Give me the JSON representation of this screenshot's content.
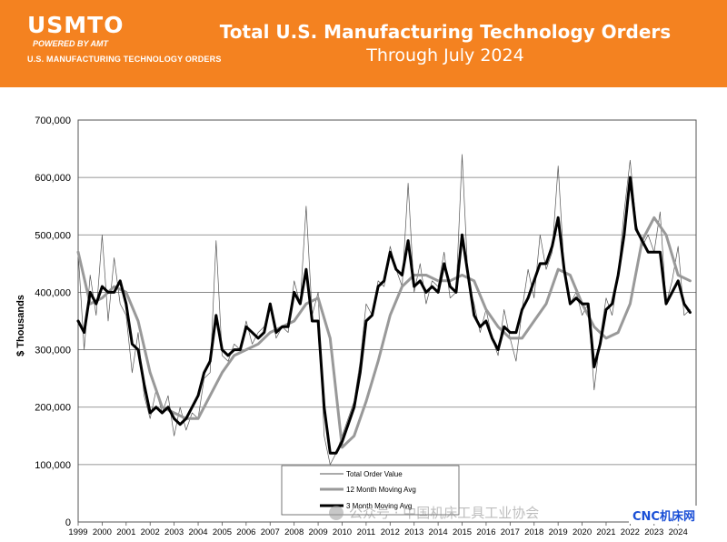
{
  "banner": {
    "logo_text": "USMTO",
    "powered_by": "POWERED BY AMT",
    "org_name": "U.S. MANUFACTURING TECHNOLOGY ORDERS",
    "title": "Total U.S. Manufacturing Technology Orders",
    "subtitle": "Through July 2024",
    "color": "#f48220"
  },
  "watermark": {
    "text": "公众号 · 中国机床工具工业协会",
    "badge": "CNC机床网"
  },
  "chart_data": {
    "type": "line",
    "title": "Total U.S. Manufacturing Technology Orders",
    "subtitle": "Through July 2024",
    "ylabel": "$ Thousands",
    "xlabel": "",
    "ylim": [
      0,
      700000
    ],
    "xlim": [
      1999,
      2024.75
    ],
    "yticks": [
      "0",
      "100,000",
      "200,000",
      "300,000",
      "400,000",
      "500,000",
      "600,000",
      "700,000"
    ],
    "xticks": [
      "1999",
      "2000",
      "2001",
      "2002",
      "2003",
      "2004",
      "2005",
      "2006",
      "2007",
      "2008",
      "2009",
      "2010",
      "2011",
      "2012",
      "2013",
      "2014",
      "2015",
      "2016",
      "2017",
      "2018",
      "2019",
      "2020",
      "2021",
      "2022",
      "2023",
      "2024"
    ],
    "grid": "horizontal",
    "legend_placement": "bottom-center",
    "series": [
      {
        "name": "Total Order Value",
        "color": "#555555",
        "x": [
          1999.0,
          1999.25,
          1999.5,
          1999.75,
          2000.0,
          2000.25,
          2000.5,
          2000.75,
          2001.0,
          2001.25,
          2001.5,
          2001.75,
          2002.0,
          2002.25,
          2002.5,
          2002.75,
          2003.0,
          2003.25,
          2003.5,
          2003.75,
          2004.0,
          2004.25,
          2004.5,
          2004.75,
          2005.0,
          2005.25,
          2005.5,
          2005.75,
          2006.0,
          2006.25,
          2006.5,
          2006.75,
          2007.0,
          2007.25,
          2007.5,
          2007.75,
          2008.0,
          2008.25,
          2008.5,
          2008.75,
          2009.0,
          2009.25,
          2009.5,
          2009.75,
          2010.0,
          2010.25,
          2010.5,
          2010.75,
          2011.0,
          2011.25,
          2011.5,
          2011.75,
          2012.0,
          2012.25,
          2012.5,
          2012.75,
          2013.0,
          2013.25,
          2013.5,
          2013.75,
          2014.0,
          2014.25,
          2014.5,
          2014.75,
          2015.0,
          2015.25,
          2015.5,
          2015.75,
          2016.0,
          2016.25,
          2016.5,
          2016.75,
          2017.0,
          2017.25,
          2017.5,
          2017.75,
          2018.0,
          2018.25,
          2018.5,
          2018.75,
          2019.0,
          2019.25,
          2019.5,
          2019.75,
          2020.0,
          2020.25,
          2020.5,
          2020.75,
          2021.0,
          2021.25,
          2021.5,
          2021.75,
          2022.0,
          2022.25,
          2022.5,
          2022.75,
          2023.0,
          2023.25,
          2023.5,
          2023.75,
          2024.0,
          2024.25,
          2024.5
        ],
        "values": [
          470000,
          300000,
          430000,
          360000,
          500000,
          350000,
          460000,
          380000,
          360000,
          260000,
          330000,
          220000,
          180000,
          230000,
          190000,
          220000,
          150000,
          200000,
          160000,
          190000,
          180000,
          250000,
          260000,
          490000,
          290000,
          280000,
          310000,
          300000,
          350000,
          310000,
          330000,
          340000,
          380000,
          320000,
          340000,
          330000,
          420000,
          380000,
          550000,
          360000,
          400000,
          150000,
          100000,
          120000,
          150000,
          180000,
          210000,
          280000,
          380000,
          360000,
          420000,
          410000,
          480000,
          440000,
          410000,
          590000,
          400000,
          450000,
          380000,
          420000,
          410000,
          470000,
          390000,
          400000,
          640000,
          420000,
          380000,
          330000,
          370000,
          320000,
          290000,
          370000,
          320000,
          280000,
          370000,
          440000,
          390000,
          500000,
          440000,
          470000,
          620000,
          440000,
          380000,
          400000,
          360000,
          380000,
          230000,
          320000,
          390000,
          360000,
          430000,
          540000,
          630000,
          520000,
          480000,
          500000,
          470000,
          540000,
          380000,
          420000,
          480000,
          360000,
          370000
        ]
      },
      {
        "name": "12 Month Moving Avg",
        "color": "#999999",
        "x": [
          1999.0,
          1999.5,
          2000.0,
          2000.5,
          2001.0,
          2001.5,
          2002.0,
          2002.5,
          2003.0,
          2003.5,
          2004.0,
          2004.5,
          2005.0,
          2005.5,
          2006.0,
          2006.5,
          2007.0,
          2007.5,
          2008.0,
          2008.5,
          2009.0,
          2009.5,
          2010.0,
          2010.5,
          2011.0,
          2011.5,
          2012.0,
          2012.5,
          2013.0,
          2013.5,
          2014.0,
          2014.5,
          2015.0,
          2015.5,
          2016.0,
          2016.5,
          2017.0,
          2017.5,
          2018.0,
          2018.5,
          2019.0,
          2019.5,
          2020.0,
          2020.5,
          2021.0,
          2021.5,
          2022.0,
          2022.5,
          2023.0,
          2023.5,
          2024.0,
          2024.5
        ],
        "values": [
          470000,
          380000,
          390000,
          410000,
          400000,
          350000,
          260000,
          200000,
          190000,
          180000,
          180000,
          220000,
          260000,
          290000,
          300000,
          310000,
          330000,
          340000,
          350000,
          380000,
          390000,
          320000,
          130000,
          150000,
          210000,
          280000,
          360000,
          410000,
          430000,
          430000,
          420000,
          420000,
          430000,
          420000,
          370000,
          340000,
          320000,
          320000,
          350000,
          380000,
          440000,
          430000,
          380000,
          340000,
          320000,
          330000,
          380000,
          490000,
          530000,
          500000,
          430000,
          420000
        ]
      },
      {
        "name": "3 Month Moving Avg",
        "color": "#000000",
        "x": [
          1999.0,
          1999.25,
          1999.5,
          1999.75,
          2000.0,
          2000.25,
          2000.5,
          2000.75,
          2001.0,
          2001.25,
          2001.5,
          2001.75,
          2002.0,
          2002.25,
          2002.5,
          2002.75,
          2003.0,
          2003.25,
          2003.5,
          2003.75,
          2004.0,
          2004.25,
          2004.5,
          2004.75,
          2005.0,
          2005.25,
          2005.5,
          2005.75,
          2006.0,
          2006.25,
          2006.5,
          2006.75,
          2007.0,
          2007.25,
          2007.5,
          2007.75,
          2008.0,
          2008.25,
          2008.5,
          2008.75,
          2009.0,
          2009.25,
          2009.5,
          2009.75,
          2010.0,
          2010.25,
          2010.5,
          2010.75,
          2011.0,
          2011.25,
          2011.5,
          2011.75,
          2012.0,
          2012.25,
          2012.5,
          2012.75,
          2013.0,
          2013.25,
          2013.5,
          2013.75,
          2014.0,
          2014.25,
          2014.5,
          2014.75,
          2015.0,
          2015.25,
          2015.5,
          2015.75,
          2016.0,
          2016.25,
          2016.5,
          2016.75,
          2017.0,
          2017.25,
          2017.5,
          2017.75,
          2018.0,
          2018.25,
          2018.5,
          2018.75,
          2019.0,
          2019.25,
          2019.5,
          2019.75,
          2020.0,
          2020.25,
          2020.5,
          2020.75,
          2021.0,
          2021.25,
          2021.5,
          2021.75,
          2022.0,
          2022.25,
          2022.5,
          2022.75,
          2023.0,
          2023.25,
          2023.5,
          2023.75,
          2024.0,
          2024.25,
          2024.5
        ],
        "values": [
          350000,
          330000,
          400000,
          380000,
          410000,
          400000,
          400000,
          420000,
          380000,
          310000,
          300000,
          240000,
          190000,
          200000,
          190000,
          200000,
          180000,
          170000,
          180000,
          200000,
          220000,
          260000,
          280000,
          360000,
          300000,
          290000,
          300000,
          300000,
          340000,
          330000,
          320000,
          330000,
          380000,
          330000,
          340000,
          340000,
          400000,
          380000,
          440000,
          350000,
          350000,
          200000,
          120000,
          120000,
          140000,
          170000,
          200000,
          260000,
          350000,
          360000,
          410000,
          420000,
          470000,
          440000,
          430000,
          490000,
          410000,
          420000,
          400000,
          410000,
          400000,
          450000,
          410000,
          400000,
          500000,
          430000,
          360000,
          340000,
          350000,
          320000,
          300000,
          340000,
          330000,
          330000,
          370000,
          390000,
          420000,
          450000,
          450000,
          480000,
          530000,
          440000,
          380000,
          390000,
          380000,
          380000,
          270000,
          310000,
          370000,
          380000,
          430000,
          500000,
          600000,
          510000,
          490000,
          470000,
          470000,
          470000,
          380000,
          400000,
          420000,
          380000,
          365000
        ]
      }
    ]
  }
}
